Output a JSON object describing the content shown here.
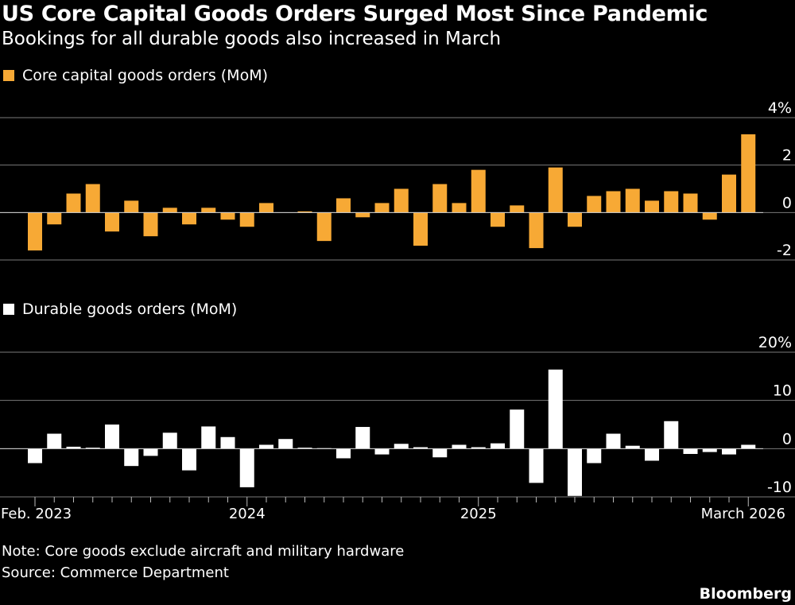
{
  "title": "US Core Capital Goods Orders Surged Most Since Pandemic",
  "subtitle": "Bookings for all durable goods also increased in March",
  "note": "Note: Core goods exclude aircraft and military hardware",
  "source": "Source: Commerce Department",
  "brand": "Bloomberg",
  "colors": {
    "core": "#f7a935",
    "durable": "#ffffff",
    "background": "#000000",
    "grid": "#7a7a7a"
  },
  "x_ticks": [
    {
      "label": "Feb. 2023",
      "index": 0
    },
    {
      "label": "2024",
      "index": 11
    },
    {
      "label": "2025",
      "index": 23
    },
    {
      "label": "March 2026",
      "index": 37
    }
  ],
  "chart_data": [
    {
      "type": "bar",
      "legend": "Core capital goods orders (MoM)",
      "x": [
        "2023-02",
        "2023-03",
        "2023-04",
        "2023-05",
        "2023-06",
        "2023-07",
        "2023-08",
        "2023-09",
        "2023-10",
        "2023-11",
        "2023-12",
        "2024-01",
        "2024-02",
        "2024-03",
        "2024-04",
        "2024-05",
        "2024-06",
        "2024-07",
        "2024-08",
        "2024-09",
        "2024-10",
        "2024-11",
        "2024-12",
        "2025-01",
        "2025-02",
        "2025-03",
        "2025-04",
        "2025-05",
        "2025-06",
        "2025-07",
        "2025-08",
        "2025-09",
        "2025-10",
        "2025-11",
        "2025-12",
        "2026-01",
        "2026-02",
        "2026-03"
      ],
      "values": [
        -1.6,
        -0.5,
        0.8,
        1.2,
        -0.8,
        0.5,
        -1.0,
        0.2,
        -0.5,
        0.2,
        -0.3,
        -0.6,
        0.4,
        0,
        0.05,
        -1.2,
        0.6,
        -0.2,
        0.4,
        1.0,
        -1.4,
        1.2,
        0.4,
        1.8,
        -0.6,
        0.3,
        -1.5,
        1.9,
        -0.6,
        0.7,
        0.9,
        1.0,
        0.5,
        0.9,
        0.8,
        -0.3,
        1.6,
        3.3
      ],
      "y_ticks": [
        4,
        2,
        0,
        -2
      ],
      "y_tick_labels": [
        "4%",
        "2",
        "0",
        "-2"
      ],
      "ylim": [
        -2,
        4
      ],
      "unit": "%"
    },
    {
      "type": "bar",
      "legend": "Durable goods orders (MoM)",
      "x": [
        "2023-02",
        "2023-03",
        "2023-04",
        "2023-05",
        "2023-06",
        "2023-07",
        "2023-08",
        "2023-09",
        "2023-10",
        "2023-11",
        "2023-12",
        "2024-01",
        "2024-02",
        "2024-03",
        "2024-04",
        "2024-05",
        "2024-06",
        "2024-07",
        "2024-08",
        "2024-09",
        "2024-10",
        "2024-11",
        "2024-12",
        "2025-01",
        "2025-02",
        "2025-03",
        "2025-04",
        "2025-05",
        "2025-06",
        "2025-07",
        "2025-08",
        "2025-09",
        "2025-10",
        "2025-11",
        "2025-12",
        "2026-01",
        "2026-02",
        "2026-03"
      ],
      "values": [
        -3.0,
        3.1,
        0.4,
        0.2,
        5.0,
        -3.6,
        -1.5,
        3.3,
        -4.5,
        4.6,
        2.4,
        -8.0,
        0.8,
        2.0,
        0.2,
        0.1,
        -2.0,
        4.5,
        -1.2,
        1.0,
        0.3,
        -1.8,
        0.8,
        0.3,
        1.1,
        8.1,
        -7.1,
        16.4,
        -9.8,
        -3.0,
        3.1,
        0.6,
        -2.5,
        5.7,
        -1.1,
        -0.7,
        -1.2,
        0.8
      ],
      "y_ticks": [
        20,
        10,
        0,
        -10
      ],
      "y_tick_labels": [
        "20%",
        "10",
        "0",
        "-10"
      ],
      "ylim": [
        -10,
        20
      ],
      "unit": "%"
    }
  ]
}
